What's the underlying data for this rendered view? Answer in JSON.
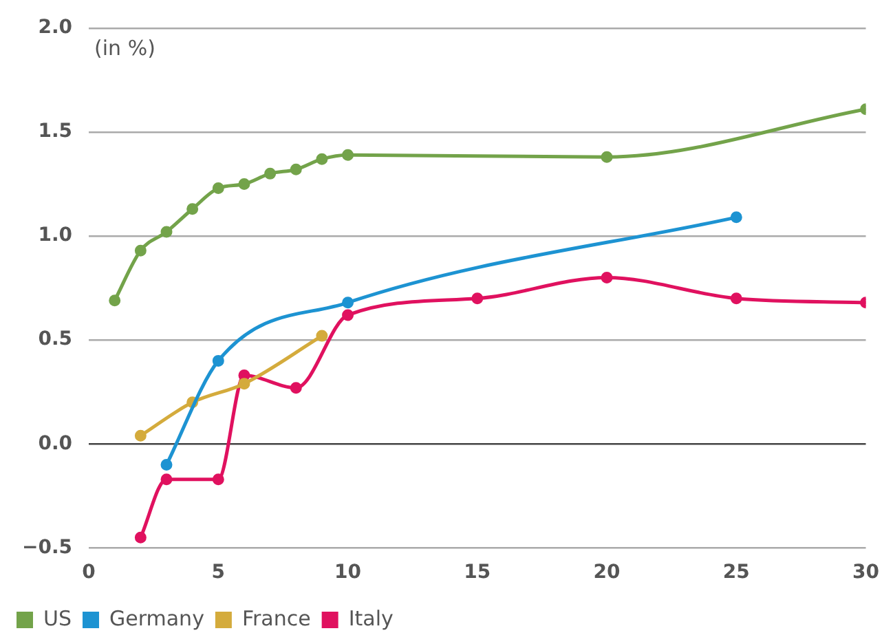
{
  "chart_data": {
    "type": "line",
    "ylabel": "(in %)",
    "xlim": [
      0,
      30
    ],
    "xticks": [
      0,
      5,
      10,
      15,
      20,
      25,
      30
    ],
    "ylim": [
      -0.5,
      2.0
    ],
    "yticks": [
      {
        "value": -0.5,
        "label": "−0.5"
      },
      {
        "value": 0,
        "label": "0.0"
      },
      {
        "value": 0.5,
        "label": "0.5"
      },
      {
        "value": 1,
        "label": "1.0"
      },
      {
        "value": 1.5,
        "label": "1.5"
      },
      {
        "value": 2,
        "label": "2.0"
      }
    ],
    "grid": "y",
    "legend": "bottom",
    "marker": "circle",
    "line_style": "solid",
    "series": [
      {
        "name": "US",
        "color": "#73a34a",
        "x": [
          1,
          2,
          3,
          4,
          5,
          6,
          7,
          8,
          9,
          10,
          20,
          30
        ],
        "values": [
          0.69,
          0.93,
          1.02,
          1.13,
          1.23,
          1.25,
          1.3,
          1.32,
          1.37,
          1.39,
          1.38,
          1.61
        ]
      },
      {
        "name": "Germany",
        "color": "#1d93d2",
        "x": [
          3,
          5,
          10,
          25
        ],
        "values": [
          -0.1,
          0.4,
          0.68,
          1.09
        ]
      },
      {
        "name": "France",
        "color": "#d4ab3c",
        "x": [
          2,
          4,
          6,
          9
        ],
        "values": [
          0.04,
          0.2,
          0.29,
          0.52
        ]
      },
      {
        "name": "Italy",
        "color": "#e0115f",
        "x": [
          2,
          3,
          5,
          6,
          8,
          10,
          15,
          20,
          25,
          30
        ],
        "values": [
          -0.45,
          -0.17,
          -0.17,
          0.33,
          0.27,
          0.62,
          0.7,
          0.8,
          0.7,
          0.68
        ]
      }
    ]
  }
}
